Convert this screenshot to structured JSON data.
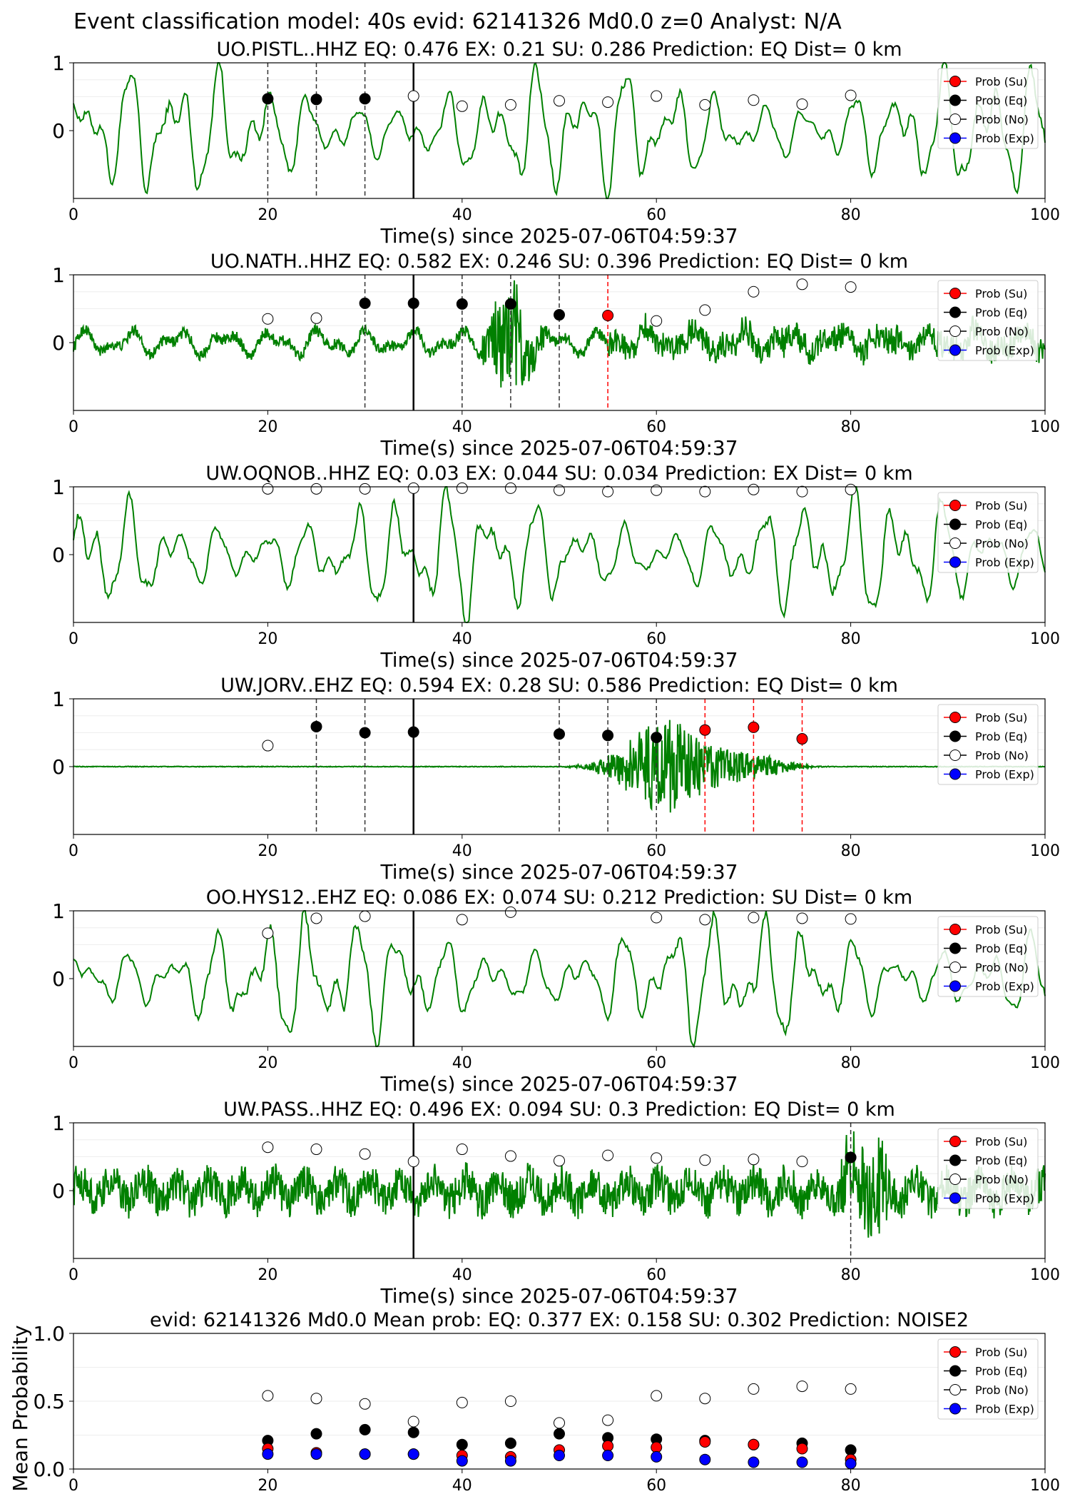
{
  "suptitle": "Event classification model: 40s evid: 62141326 Md0.0 z=0 Analyst: N/A",
  "chart_data": {
    "type": "line",
    "xlabel": "Time(s) since 2025-07-06T04:59:37",
    "xlim": [
      0,
      100
    ],
    "xticks": [
      0,
      20,
      40,
      60,
      80,
      100
    ],
    "legend": [
      "Prob (Su)",
      "Prob (Eq)",
      "Prob (No)",
      "Prob (Exp)"
    ],
    "legend_colors": {
      "su": "#ff0000",
      "eq": "#000000",
      "no": "#ffffff",
      "exp": "#0000ff"
    },
    "legend_placement": "upper-right",
    "waveform_color": "#008000",
    "origin_time_line_x": 35,
    "panels": [
      {
        "title": "UO.PISTL..HHZ   EQ: 0.476  EX: 0.21  SU: 0.286   Prediction: EQ    Dist= 0 km",
        "station": "UO.PISTL..HHZ",
        "eq": 0.476,
        "ex": 0.21,
        "su": 0.286,
        "prediction": "EQ",
        "dist_km": 0,
        "wave": "noise_periodic",
        "ylim": [
          -1,
          1
        ],
        "yticks": [
          "1",
          "0"
        ],
        "points": [
          {
            "x": 20,
            "y": 0.47,
            "cls": "eq"
          },
          {
            "x": 25,
            "y": 0.46,
            "cls": "eq"
          },
          {
            "x": 30,
            "y": 0.47,
            "cls": "eq"
          },
          {
            "x": 35,
            "y": 0.51,
            "cls": "no"
          },
          {
            "x": 40,
            "y": 0.36,
            "cls": "no"
          },
          {
            "x": 45,
            "y": 0.38,
            "cls": "no"
          },
          {
            "x": 50,
            "y": 0.44,
            "cls": "no"
          },
          {
            "x": 55,
            "y": 0.42,
            "cls": "no"
          },
          {
            "x": 60,
            "y": 0.51,
            "cls": "no"
          },
          {
            "x": 65,
            "y": 0.38,
            "cls": "no"
          },
          {
            "x": 70,
            "y": 0.45,
            "cls": "no"
          },
          {
            "x": 75,
            "y": 0.39,
            "cls": "no"
          },
          {
            "x": 80,
            "y": 0.52,
            "cls": "no"
          }
        ]
      },
      {
        "title": "UO.NATH..HHZ   EQ: 0.582  EX: 0.246  SU: 0.396   Prediction: EQ    Dist= 0 km",
        "station": "UO.NATH..HHZ",
        "eq": 0.582,
        "ex": 0.246,
        "su": 0.396,
        "prediction": "EQ",
        "dist_km": 0,
        "wave": "noisy_event",
        "ylim": [
          -1,
          1
        ],
        "yticks": [
          "1",
          "0"
        ],
        "points": [
          {
            "x": 20,
            "y": 0.35,
            "cls": "no"
          },
          {
            "x": 25,
            "y": 0.36,
            "cls": "no"
          },
          {
            "x": 30,
            "y": 0.58,
            "cls": "eq"
          },
          {
            "x": 35,
            "y": 0.58,
            "cls": "eq"
          },
          {
            "x": 40,
            "y": 0.57,
            "cls": "eq"
          },
          {
            "x": 45,
            "y": 0.57,
            "cls": "eq"
          },
          {
            "x": 50,
            "y": 0.41,
            "cls": "eq"
          },
          {
            "x": 55,
            "y": 0.4,
            "cls": "su"
          },
          {
            "x": 60,
            "y": 0.32,
            "cls": "no"
          },
          {
            "x": 65,
            "y": 0.48,
            "cls": "no"
          },
          {
            "x": 70,
            "y": 0.75,
            "cls": "no"
          },
          {
            "x": 75,
            "y": 0.86,
            "cls": "no"
          },
          {
            "x": 80,
            "y": 0.82,
            "cls": "no"
          }
        ]
      },
      {
        "title": "UW.OQNOB..HHZ   EQ: 0.03  EX: 0.044  SU: 0.034   Prediction: EX    Dist= 0 km",
        "station": "UW.OQNOB..HHZ",
        "eq": 0.03,
        "ex": 0.044,
        "su": 0.034,
        "prediction": "EX",
        "dist_km": 0,
        "wave": "noise_periodic",
        "ylim": [
          -1,
          1
        ],
        "yticks": [
          "1",
          "0"
        ],
        "points": [
          {
            "x": 20,
            "y": 0.97,
            "cls": "no"
          },
          {
            "x": 25,
            "y": 0.97,
            "cls": "no"
          },
          {
            "x": 30,
            "y": 0.97,
            "cls": "no"
          },
          {
            "x": 35,
            "y": 0.98,
            "cls": "no"
          },
          {
            "x": 40,
            "y": 0.98,
            "cls": "no"
          },
          {
            "x": 45,
            "y": 0.98,
            "cls": "no"
          },
          {
            "x": 50,
            "y": 0.95,
            "cls": "no"
          },
          {
            "x": 55,
            "y": 0.93,
            "cls": "no"
          },
          {
            "x": 60,
            "y": 0.95,
            "cls": "no"
          },
          {
            "x": 65,
            "y": 0.93,
            "cls": "no"
          },
          {
            "x": 70,
            "y": 0.96,
            "cls": "no"
          },
          {
            "x": 75,
            "y": 0.93,
            "cls": "no"
          },
          {
            "x": 80,
            "y": 0.96,
            "cls": "no"
          }
        ]
      },
      {
        "title": "UW.JORV..EHZ   EQ: 0.594  EX: 0.28  SU: 0.586   Prediction: EQ    Dist= 0 km",
        "station": "UW.JORV..EHZ",
        "eq": 0.594,
        "ex": 0.28,
        "su": 0.586,
        "prediction": "EQ",
        "dist_km": 0,
        "wave": "quiet_burst",
        "ylim": [
          -1,
          1
        ],
        "yticks": [
          "1",
          "0"
        ],
        "points": [
          {
            "x": 20,
            "y": 0.31,
            "cls": "no"
          },
          {
            "x": 25,
            "y": 0.59,
            "cls": "eq"
          },
          {
            "x": 30,
            "y": 0.5,
            "cls": "eq"
          },
          {
            "x": 35,
            "y": 0.51,
            "cls": "eq"
          },
          {
            "x": 50,
            "y": 0.48,
            "cls": "eq"
          },
          {
            "x": 55,
            "y": 0.46,
            "cls": "eq"
          },
          {
            "x": 60,
            "y": 0.43,
            "cls": "eq"
          },
          {
            "x": 65,
            "y": 0.54,
            "cls": "su"
          },
          {
            "x": 70,
            "y": 0.58,
            "cls": "su"
          },
          {
            "x": 75,
            "y": 0.41,
            "cls": "su"
          }
        ]
      },
      {
        "title": "OO.HYS12..EHZ   EQ: 0.086  EX: 0.074  SU: 0.212   Prediction: SU    Dist= 0 km",
        "station": "OO.HYS12..EHZ",
        "eq": 0.086,
        "ex": 0.074,
        "su": 0.212,
        "prediction": "SU",
        "dist_km": 0,
        "wave": "noise_periodic",
        "ylim": [
          -1,
          1
        ],
        "yticks": [
          "1",
          "0"
        ],
        "points": [
          {
            "x": 20,
            "y": 0.67,
            "cls": "no"
          },
          {
            "x": 25,
            "y": 0.89,
            "cls": "no"
          },
          {
            "x": 30,
            "y": 0.92,
            "cls": "no"
          },
          {
            "x": 40,
            "y": 0.87,
            "cls": "no"
          },
          {
            "x": 45,
            "y": 0.98,
            "cls": "no"
          },
          {
            "x": 60,
            "y": 0.9,
            "cls": "no"
          },
          {
            "x": 65,
            "y": 0.87,
            "cls": "no"
          },
          {
            "x": 70,
            "y": 0.9,
            "cls": "no"
          },
          {
            "x": 75,
            "y": 0.89,
            "cls": "no"
          },
          {
            "x": 80,
            "y": 0.88,
            "cls": "no"
          }
        ]
      },
      {
        "title": "UW.PASS..HHZ   EQ: 0.496  EX: 0.094  SU: 0.3   Prediction: EQ    Dist= 0 km",
        "station": "UW.PASS..HHZ",
        "eq": 0.496,
        "ex": 0.094,
        "su": 0.3,
        "prediction": "EQ",
        "dist_km": 0,
        "wave": "noisy",
        "ylim": [
          -1,
          1
        ],
        "yticks": [
          "1",
          "0"
        ],
        "points": [
          {
            "x": 20,
            "y": 0.64,
            "cls": "no"
          },
          {
            "x": 25,
            "y": 0.61,
            "cls": "no"
          },
          {
            "x": 30,
            "y": 0.54,
            "cls": "no"
          },
          {
            "x": 35,
            "y": 0.43,
            "cls": "no"
          },
          {
            "x": 40,
            "y": 0.61,
            "cls": "no"
          },
          {
            "x": 45,
            "y": 0.51,
            "cls": "no"
          },
          {
            "x": 50,
            "y": 0.44,
            "cls": "no"
          },
          {
            "x": 55,
            "y": 0.52,
            "cls": "no"
          },
          {
            "x": 60,
            "y": 0.48,
            "cls": "no"
          },
          {
            "x": 65,
            "y": 0.45,
            "cls": "no"
          },
          {
            "x": 70,
            "y": 0.46,
            "cls": "no"
          },
          {
            "x": 75,
            "y": 0.43,
            "cls": "no"
          },
          {
            "x": 80,
            "y": 0.49,
            "cls": "eq"
          }
        ]
      }
    ],
    "summary": {
      "title": "evid: 62141326  Md0.0   Mean prob:   EQ: 0.377  EX: 0.158  SU: 0.302   Prediction: NOISE2",
      "ylabel": "Mean Probability",
      "ylim": [
        0,
        1
      ],
      "yticks": [
        "0.0",
        "0.5",
        "1.0"
      ],
      "x": [
        20,
        25,
        30,
        35,
        40,
        45,
        50,
        55,
        60,
        65,
        70,
        75,
        80
      ],
      "series": [
        {
          "name": "Prob (No)",
          "cls": "no",
          "values": [
            0.54,
            0.52,
            0.48,
            0.35,
            0.49,
            0.5,
            0.34,
            0.36,
            0.54,
            0.52,
            0.59,
            0.61,
            0.59
          ]
        },
        {
          "name": "Prob (Eq)",
          "cls": "eq",
          "values": [
            0.21,
            0.26,
            0.29,
            0.27,
            0.18,
            0.19,
            0.26,
            0.23,
            0.22,
            0.21,
            0.18,
            0.19,
            0.14
          ]
        },
        {
          "name": "Prob (Su)",
          "cls": "su",
          "values": [
            0.15,
            0.12,
            0.11,
            0.11,
            0.1,
            0.09,
            0.14,
            0.17,
            0.16,
            0.2,
            0.18,
            0.15,
            0.07
          ]
        },
        {
          "name": "Prob (Exp)",
          "cls": "exp",
          "values": [
            0.11,
            0.11,
            0.11,
            0.11,
            0.06,
            0.06,
            0.1,
            0.1,
            0.09,
            0.07,
            0.05,
            0.05,
            0.04
          ]
        }
      ]
    }
  }
}
